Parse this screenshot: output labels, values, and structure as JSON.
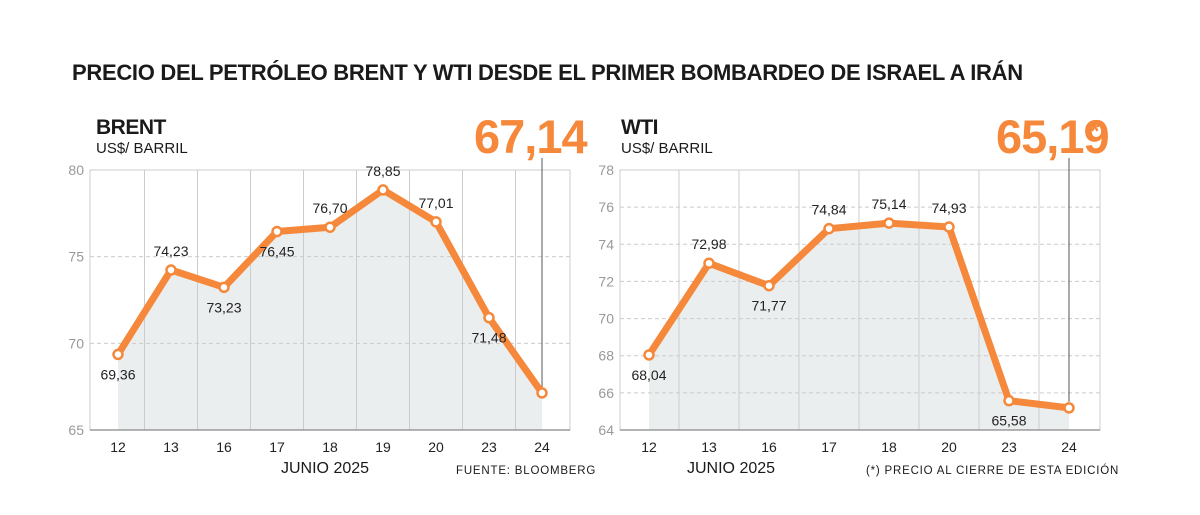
{
  "title": "PRECIO DEL PETRÓLEO BRENT Y WTI DESDE EL PRIMER BOMBARDEO DE ISRAEL A IRÁN",
  "colors": {
    "line": "#f5883a",
    "area": "#ebeeef",
    "grid": "#cccccc"
  },
  "chart_data": [
    {
      "type": "area",
      "name": "BRENT",
      "unit": "US$/ BARRIL",
      "headline_value": "67,14",
      "headline_suffix": "",
      "xlabel": "JUNIO 2025",
      "note": "FUENTE: BLOOMBERG",
      "categories": [
        "12",
        "13",
        "16",
        "17",
        "18",
        "19",
        "20",
        "23",
        "24"
      ],
      "values": [
        69.36,
        74.23,
        73.23,
        76.45,
        76.7,
        78.85,
        77.01,
        71.48,
        67.14
      ],
      "labels": [
        "69,36",
        "74,23",
        "73,23",
        "76,45",
        "76,70",
        "78,85",
        "77,01",
        "71,48",
        ""
      ],
      "ylim": [
        65,
        80
      ],
      "yticks": [
        65,
        70,
        75,
        80
      ],
      "grid": true
    },
    {
      "type": "area",
      "name": "WTI",
      "unit": "US$/ BARRIL",
      "headline_value": "65,19",
      "headline_suffix": "*",
      "xlabel": "JUNIO 2025",
      "note": "(*) PRECIO AL CIERRE DE ESTA EDICIÓN",
      "categories": [
        "12",
        "13",
        "16",
        "17",
        "18",
        "20",
        "23",
        "24"
      ],
      "values": [
        68.04,
        72.98,
        71.77,
        74.84,
        75.14,
        74.93,
        65.58,
        65.19
      ],
      "labels": [
        "68,04",
        "72,98",
        "71,77",
        "74,84",
        "75,14",
        "74,93",
        "65,58",
        ""
      ],
      "ylim": [
        64,
        78
      ],
      "yticks": [
        64,
        66,
        68,
        70,
        72,
        74,
        76,
        78
      ],
      "grid": true
    }
  ]
}
